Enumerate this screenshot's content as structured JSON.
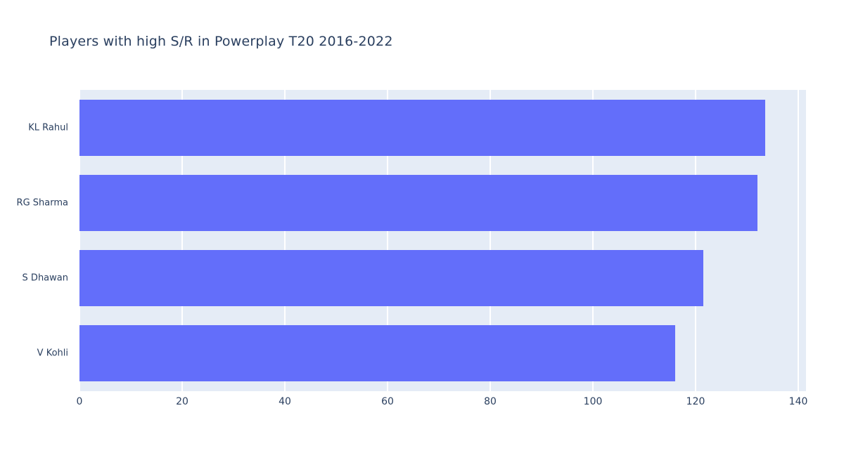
{
  "title": "Players with high S/R in Powerplay T20 2016-2022",
  "colors": {
    "bar": "#636efa",
    "plot_background": "#e5ecf6",
    "gridline": "#ffffff",
    "title_text": "#2a3f5f",
    "axis_text": "#2a3f5f",
    "page_background": "#ffffff"
  },
  "chart_data": {
    "type": "bar",
    "orientation": "horizontal",
    "title": "Players with high S/R in Powerplay T20 2016-2022",
    "categories": [
      "KL Rahul",
      "RG Sharma",
      "S Dhawan",
      "V Kohli"
    ],
    "values": [
      133.5,
      132,
      121.5,
      116
    ],
    "xlabel": "",
    "ylabel": "",
    "xlim": [
      0,
      140
    ],
    "xticks": [
      0,
      20,
      40,
      60,
      80,
      100,
      120,
      140
    ],
    "grid": true,
    "legend": "none"
  }
}
